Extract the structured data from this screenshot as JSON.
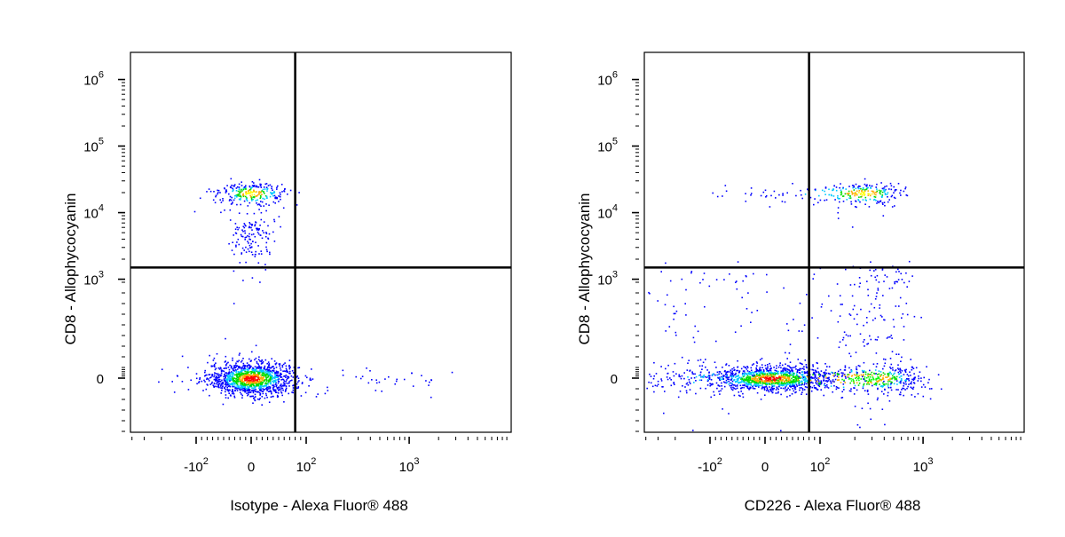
{
  "chart_data": [
    {
      "type": "scatter",
      "plot": "density",
      "xlabel": "Isotype - Alexa Fluor® 488",
      "ylabel": "CD8 - Allophycocyanin",
      "x_scale": "biexponential",
      "y_scale": "biexponential",
      "x_ticks": [
        "-10^2",
        "0",
        "10^2",
        "10^3"
      ],
      "y_ticks": [
        "0",
        "10^3",
        "10^4",
        "10^5",
        "10^6"
      ],
      "xlim": [
        -300,
        10000
      ],
      "ylim": [
        -300,
        1000000
      ],
      "gate": {
        "x": 80,
        "y": 1500
      },
      "populations": [
        {
          "name": "",
          "x_center": 0,
          "y_center": 0,
          "x_spread": 40,
          "y_spread": 80,
          "count": 1300,
          "peak_color": "#ff0000"
        },
        {
          "name": "",
          "x_center": 0,
          "y_center": 20000,
          "x_spread": 35,
          "y_spread": 4000,
          "count": 260,
          "peak_color": "#ffff00"
        },
        {
          "name": "",
          "x_center": 0,
          "y_center": 4000,
          "x_spread": 20,
          "y_spread": 2500,
          "count": 140,
          "peak_color": "#0000ff"
        },
        {
          "name": "",
          "x_center": 400,
          "y_center": 0,
          "x_spread": 900,
          "y_spread": 60,
          "count": 45,
          "peak_color": "#0000ff"
        }
      ]
    },
    {
      "type": "scatter",
      "plot": "density",
      "xlabel": "CD226 - Alexa Fluor® 488",
      "ylabel": "CD8 - Allophycocyanin",
      "x_scale": "biexponential",
      "y_scale": "biexponential",
      "x_ticks": [
        "-10^2",
        "0",
        "10^2",
        "10^3"
      ],
      "y_ticks": [
        "0",
        "10^3",
        "10^4",
        "10^5",
        "10^6"
      ],
      "xlim": [
        -300,
        10000
      ],
      "ylim": [
        -300,
        1000000
      ],
      "gate": {
        "x": 80,
        "y": 1500
      },
      "populations": [
        {
          "name": "",
          "x_center": 10,
          "y_center": 0,
          "x_spread": 60,
          "y_spread": 60,
          "count": 1100,
          "peak_color": "#ff0000"
        },
        {
          "name": "",
          "x_center": 250,
          "y_center": 0,
          "x_spread": 350,
          "y_spread": 70,
          "count": 500,
          "peak_color": "#00ff00"
        },
        {
          "name": "",
          "x_center": 250,
          "y_center": 20000,
          "x_spread": 150,
          "y_spread": 4000,
          "count": 260,
          "peak_color": "#ffff00"
        },
        {
          "name": "",
          "x_center": 150,
          "y_center": 500,
          "x_spread": 300,
          "y_spread": 500,
          "count": 300,
          "peak_color": "#0000ff"
        }
      ]
    }
  ]
}
